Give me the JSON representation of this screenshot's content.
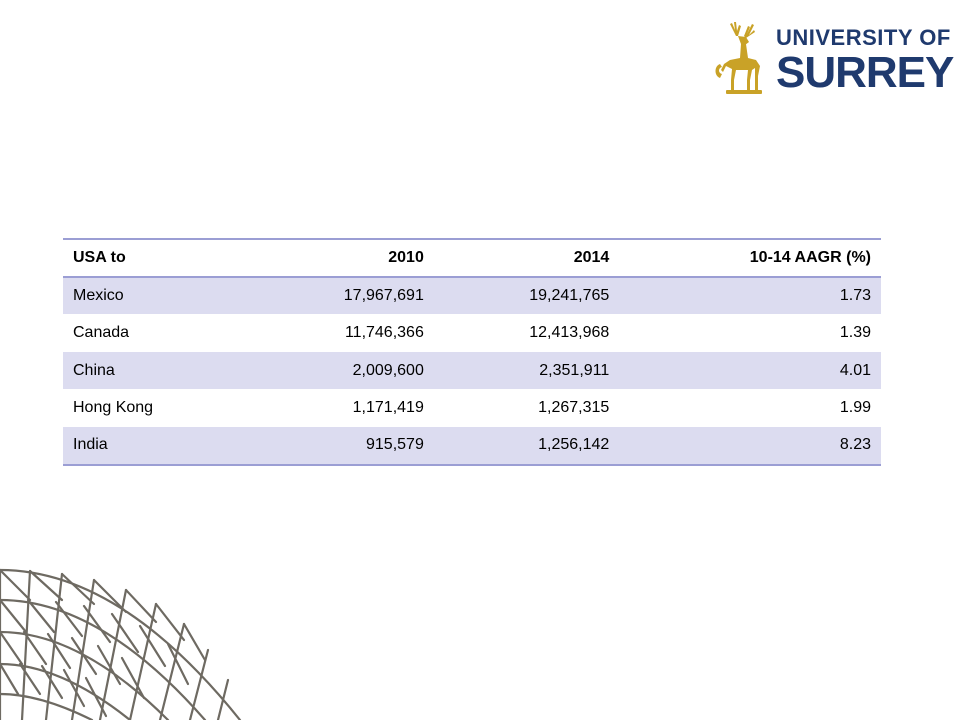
{
  "logo": {
    "line1": "UNIVERSITY OF",
    "line2": "SURREY",
    "colors": {
      "text": "#1f3a6e",
      "stag": "#c9a227"
    }
  },
  "table": {
    "headers": [
      "USA to",
      "2010",
      "2014",
      "10-14 AAGR (%)"
    ],
    "rows": [
      [
        "Mexico",
        "17,967,691",
        "19,241,765",
        "1.73"
      ],
      [
        "Canada",
        "11,746,366",
        "12,413,968",
        "1.39"
      ],
      [
        "China",
        "2,009,600",
        "2,351,911",
        "4.01"
      ],
      [
        "Hong Kong",
        "1,171,419",
        "1,267,315",
        "1.99"
      ],
      [
        "India",
        "915,579",
        "1,256,142",
        "8.23"
      ]
    ],
    "colors": {
      "rule": "#9b9ed4",
      "band": "#dcdcf0"
    }
  }
}
